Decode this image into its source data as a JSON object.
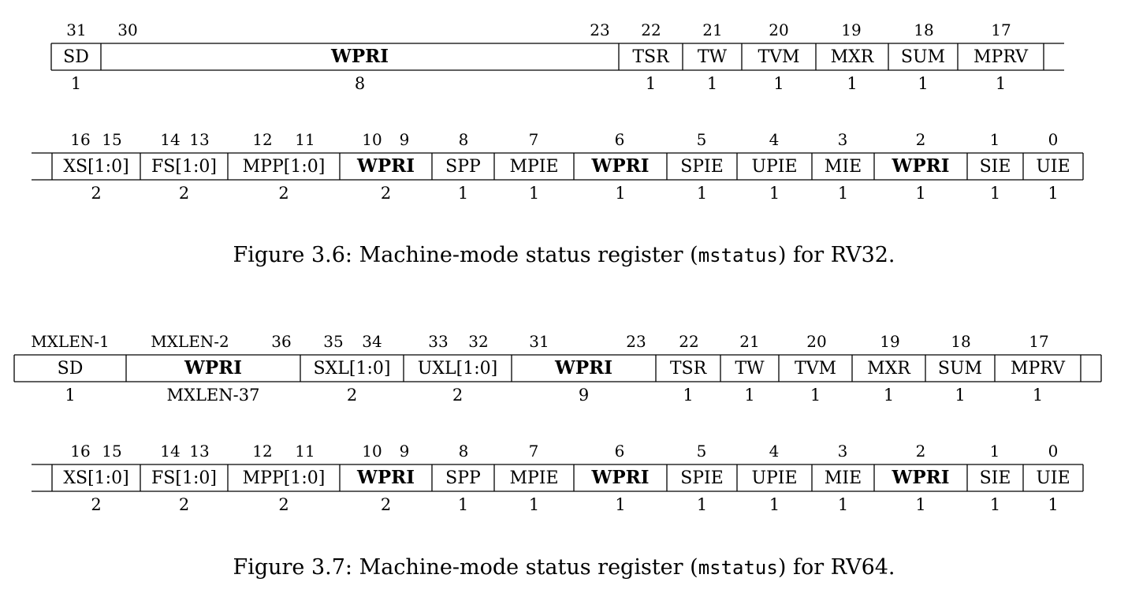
{
  "figures": [
    {
      "rows": [
        {
          "bits": [
            {
              "label": "31"
            },
            {
              "label": "30"
            },
            {
              "label": "23"
            },
            {
              "label": "22"
            },
            {
              "label": "21"
            },
            {
              "label": "20"
            },
            {
              "label": "19"
            },
            {
              "label": "18"
            },
            {
              "label": "17"
            }
          ],
          "fields": [
            {
              "name": "SD",
              "width": "1",
              "bold": false
            },
            {
              "name": "WPRI",
              "width": "8",
              "bold": true
            },
            {
              "name": "TSR",
              "width": "1",
              "bold": false
            },
            {
              "name": "TW",
              "width": "1",
              "bold": false
            },
            {
              "name": "TVM",
              "width": "1",
              "bold": false
            },
            {
              "name": "MXR",
              "width": "1",
              "bold": false
            },
            {
              "name": "SUM",
              "width": "1",
              "bold": false
            },
            {
              "name": "MPRV",
              "width": "1",
              "bold": false
            }
          ]
        },
        {
          "bits": [
            {
              "label": "16"
            },
            {
              "label": "15"
            },
            {
              "label": "14"
            },
            {
              "label": "13"
            },
            {
              "label": "12"
            },
            {
              "label": "11"
            },
            {
              "label": "10"
            },
            {
              "label": "9"
            },
            {
              "label": "8"
            },
            {
              "label": "7"
            },
            {
              "label": "6"
            },
            {
              "label": "5"
            },
            {
              "label": "4"
            },
            {
              "label": "3"
            },
            {
              "label": "2"
            },
            {
              "label": "1"
            },
            {
              "label": "0"
            }
          ],
          "fields": [
            {
              "name": "XS[1:0]",
              "width": "2",
              "bold": false
            },
            {
              "name": "FS[1:0]",
              "width": "2",
              "bold": false
            },
            {
              "name": "MPP[1:0]",
              "width": "2",
              "bold": false
            },
            {
              "name": "WPRI",
              "width": "2",
              "bold": true
            },
            {
              "name": "SPP",
              "width": "1",
              "bold": false
            },
            {
              "name": "MPIE",
              "width": "1",
              "bold": false
            },
            {
              "name": "WPRI",
              "width": "1",
              "bold": true
            },
            {
              "name": "SPIE",
              "width": "1",
              "bold": false
            },
            {
              "name": "UPIE",
              "width": "1",
              "bold": false
            },
            {
              "name": "MIE",
              "width": "1",
              "bold": false
            },
            {
              "name": "WPRI",
              "width": "1",
              "bold": true
            },
            {
              "name": "SIE",
              "width": "1",
              "bold": false
            },
            {
              "name": "UIE",
              "width": "1",
              "bold": false
            }
          ]
        }
      ],
      "caption": {
        "prefix": "Figure 3.6: Machine-mode status register (",
        "code": "mstatus",
        "suffix": ") for RV32."
      }
    },
    {
      "rows": [
        {
          "bits": [
            {
              "label": "MXLEN-1"
            },
            {
              "label": "MXLEN-2"
            },
            {
              "label": "36"
            },
            {
              "label": "35"
            },
            {
              "label": "34"
            },
            {
              "label": "33"
            },
            {
              "label": "32"
            },
            {
              "label": "31"
            },
            {
              "label": "23"
            },
            {
              "label": "22"
            },
            {
              "label": "21"
            },
            {
              "label": "20"
            },
            {
              "label": "19"
            },
            {
              "label": "18"
            },
            {
              "label": "17"
            }
          ],
          "fields": [
            {
              "name": "SD",
              "width": "1",
              "bold": false
            },
            {
              "name": "WPRI",
              "width": "MXLEN-37",
              "bold": true
            },
            {
              "name": "SXL[1:0]",
              "width": "2",
              "bold": false
            },
            {
              "name": "UXL[1:0]",
              "width": "2",
              "bold": false
            },
            {
              "name": "WPRI",
              "width": "9",
              "bold": true
            },
            {
              "name": "TSR",
              "width": "1",
              "bold": false
            },
            {
              "name": "TW",
              "width": "1",
              "bold": false
            },
            {
              "name": "TVM",
              "width": "1",
              "bold": false
            },
            {
              "name": "MXR",
              "width": "1",
              "bold": false
            },
            {
              "name": "SUM",
              "width": "1",
              "bold": false
            },
            {
              "name": "MPRV",
              "width": "1",
              "bold": false
            }
          ]
        },
        {
          "bits": [
            {
              "label": "16"
            },
            {
              "label": "15"
            },
            {
              "label": "14"
            },
            {
              "label": "13"
            },
            {
              "label": "12"
            },
            {
              "label": "11"
            },
            {
              "label": "10"
            },
            {
              "label": "9"
            },
            {
              "label": "8"
            },
            {
              "label": "7"
            },
            {
              "label": "6"
            },
            {
              "label": "5"
            },
            {
              "label": "4"
            },
            {
              "label": "3"
            },
            {
              "label": "2"
            },
            {
              "label": "1"
            },
            {
              "label": "0"
            }
          ],
          "fields": [
            {
              "name": "XS[1:0]",
              "width": "2",
              "bold": false
            },
            {
              "name": "FS[1:0]",
              "width": "2",
              "bold": false
            },
            {
              "name": "MPP[1:0]",
              "width": "2",
              "bold": false
            },
            {
              "name": "WPRI",
              "width": "2",
              "bold": true
            },
            {
              "name": "SPP",
              "width": "1",
              "bold": false
            },
            {
              "name": "MPIE",
              "width": "1",
              "bold": false
            },
            {
              "name": "WPRI",
              "width": "1",
              "bold": true
            },
            {
              "name": "SPIE",
              "width": "1",
              "bold": false
            },
            {
              "name": "UPIE",
              "width": "1",
              "bold": false
            },
            {
              "name": "MIE",
              "width": "1",
              "bold": false
            },
            {
              "name": "WPRI",
              "width": "1",
              "bold": true
            },
            {
              "name": "SIE",
              "width": "1",
              "bold": false
            },
            {
              "name": "UIE",
              "width": "1",
              "bold": false
            }
          ]
        }
      ],
      "caption": {
        "prefix": "Figure 3.7: Machine-mode status register (",
        "code": "mstatus",
        "suffix": ") for RV64."
      }
    }
  ]
}
